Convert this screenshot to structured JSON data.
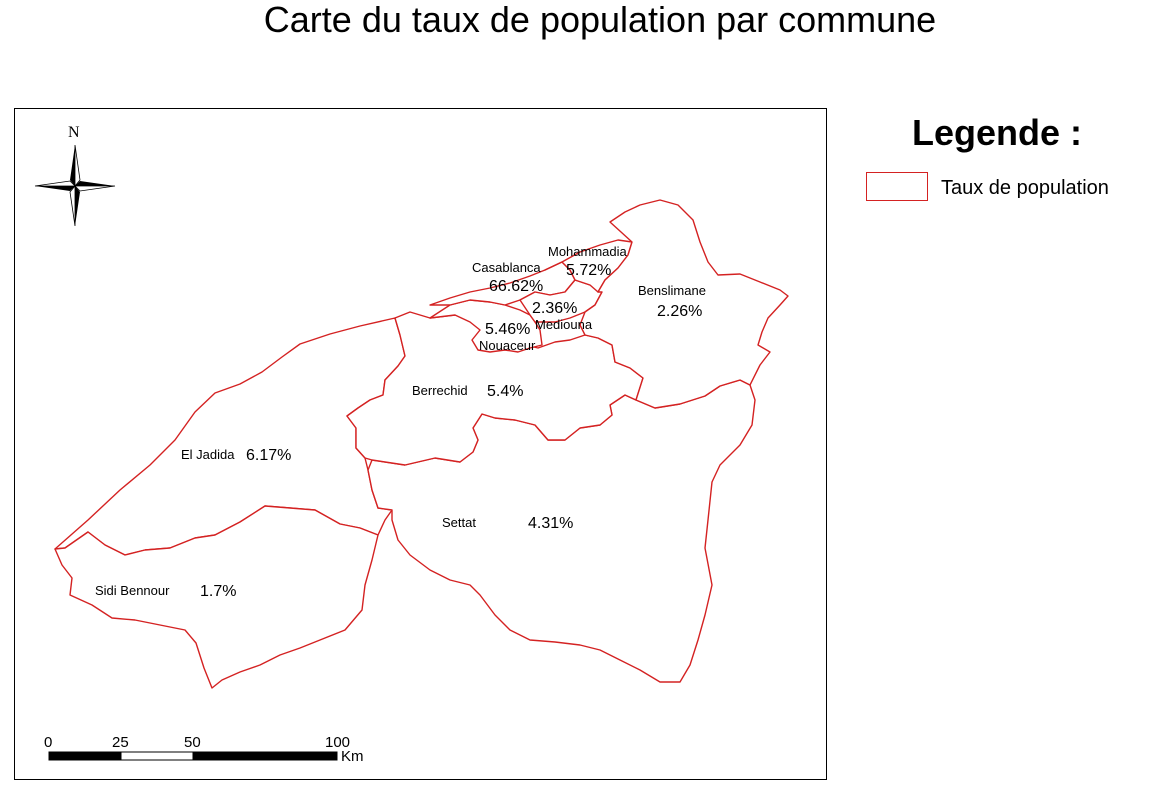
{
  "title": "Carte du taux de population par commune",
  "legend": {
    "title": "Legende :",
    "item_label": "Taux de population",
    "stroke_color": "#d42222"
  },
  "north_arrow": {
    "label": "N"
  },
  "scale_bar": {
    "ticks": [
      "0",
      "25",
      "50",
      "100"
    ],
    "unit": "Km"
  },
  "communes": [
    {
      "name": "Casablanca",
      "value": "66.62%"
    },
    {
      "name": "Mohammadia",
      "value": "5.72%"
    },
    {
      "name": "Mediouna",
      "value": "2.36%"
    },
    {
      "name": "Nouaceur",
      "value": "5.46%"
    },
    {
      "name": "Benslimane",
      "value": "2.26%"
    },
    {
      "name": "Berrechid",
      "value": "5.4%"
    },
    {
      "name": "El Jadida",
      "value": "6.17%"
    },
    {
      "name": "Settat",
      "value": "4.31%"
    },
    {
      "name": "Sidi Bennour",
      "value": "1.7%"
    }
  ]
}
